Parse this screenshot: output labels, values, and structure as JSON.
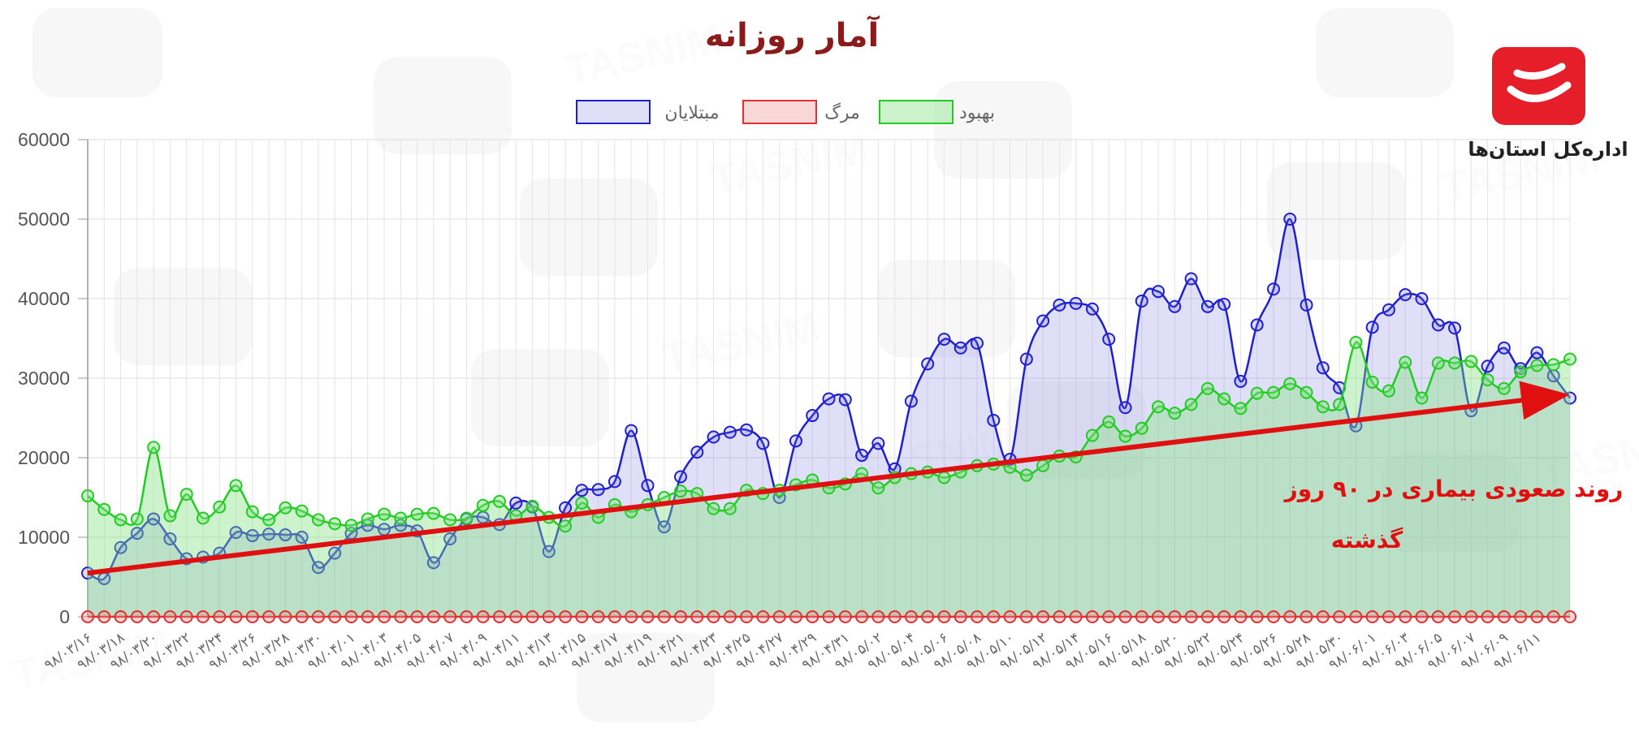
{
  "chart_data": {
    "type": "line",
    "title": "آمار روزانه",
    "ylim": [
      0,
      60000
    ],
    "y_ticks": [
      "0",
      "10000",
      "20000",
      "30000",
      "40000",
      "50000",
      "60000"
    ],
    "grid": true,
    "legend_position": "top-center",
    "x_tick_labels": [
      "۹۸/۰۳/۱۶",
      "۹۸/۰۳/۱۸",
      "۹۸/۰۳/۲۰",
      "۹۸/۰۳/۲۲",
      "۹۸/۰۳/۲۴",
      "۹۸/۰۳/۲۶",
      "۹۸/۰۳/۲۸",
      "۹۸/۰۳/۳۰",
      "۹۸/۰۴/۰۱",
      "۹۸/۰۴/۰۳",
      "۹۸/۰۴/۰۵",
      "۹۸/۰۴/۰۷",
      "۹۸/۰۴/۰۹",
      "۹۸/۰۴/۱۱",
      "۹۸/۰۴/۱۳",
      "۹۸/۰۴/۱۵",
      "۹۸/۰۴/۱۷",
      "۹۸/۰۴/۱۹",
      "۹۸/۰۴/۲۱",
      "۹۸/۰۴/۲۳",
      "۹۸/۰۴/۲۵",
      "۹۸/۰۴/۲۷",
      "۹۸/۰۴/۲۹",
      "۹۸/۰۴/۳۱",
      "۹۸/۰۵/۰۲",
      "۹۸/۰۵/۰۴",
      "۹۸/۰۵/۰۶",
      "۹۸/۰۵/۰۸",
      "۹۸/۰۵/۱۰",
      "۹۸/۰۵/۱۲",
      "۹۸/۰۵/۱۴",
      "۹۸/۰۵/۱۶",
      "۹۸/۰۵/۱۸",
      "۹۸/۰۵/۲۰",
      "۹۸/۰۵/۲۲",
      "۹۸/۰۵/۲۴",
      "۹۸/۰۵/۲۶",
      "۹۸/۰۵/۲۸",
      "۹۸/۰۵/۳۰",
      "۹۸/۰۶/۰۱",
      "۹۸/۰۶/۰۳",
      "۹۸/۰۶/۰۵",
      "۹۸/۰۶/۰۷",
      "۹۸/۰۶/۰۹",
      "۹۸/۰۶/۱۱"
    ],
    "series": [
      {
        "name": "مبتلایان",
        "color": "#1f1fd0",
        "fill": "rgba(110,110,220,0.22)",
        "values": [
          5500,
          4800,
          8700,
          10500,
          12300,
          9800,
          7300,
          7500,
          8000,
          10600,
          10200,
          10400,
          10300,
          10000,
          6200,
          8000,
          10500,
          11500,
          11000,
          11500,
          10800,
          6800,
          9800,
          12300,
          12500,
          11600,
          14300,
          13800,
          8200,
          13700,
          15900,
          16000,
          17000,
          23400,
          16500,
          11300,
          17600,
          20700,
          22600,
          23200,
          23500,
          21800,
          15000,
          22100,
          25300,
          27400,
          27300,
          20300,
          21800,
          18600,
          27100,
          31800,
          34900,
          33800,
          34400,
          24700,
          19800,
          32400,
          37200,
          39200,
          39400,
          38700,
          34900,
          26300,
          39700,
          40900,
          39000,
          42500,
          39000,
          39300,
          29600,
          36700,
          41200,
          50000,
          39200,
          31300,
          28800,
          24000,
          36400,
          38600,
          40500,
          40000,
          36700,
          36300,
          25900,
          31500,
          33800,
          31200,
          33200,
          30300,
          27500
        ]
      },
      {
        "name": "مرگ",
        "color": "#e03030",
        "fill": "rgba(240,140,140,0.35)",
        "values": [
          0,
          0,
          0,
          0,
          0,
          0,
          0,
          0,
          0,
          0,
          0,
          0,
          0,
          0,
          0,
          0,
          0,
          0,
          0,
          0,
          0,
          0,
          0,
          0,
          0,
          0,
          0,
          0,
          0,
          0,
          0,
          0,
          0,
          0,
          0,
          0,
          0,
          0,
          0,
          0,
          0,
          0,
          0,
          0,
          0,
          0,
          0,
          0,
          0,
          0,
          0,
          0,
          0,
          0,
          0,
          0,
          0,
          0,
          0,
          0,
          0,
          0,
          0,
          0,
          0,
          0,
          0,
          0,
          0,
          0,
          0,
          0,
          0,
          0,
          0,
          0,
          0,
          0,
          0,
          0,
          0,
          0,
          0,
          0,
          0,
          0,
          0,
          0,
          0,
          0,
          0
        ]
      },
      {
        "name": "بهبود",
        "color": "#22cc22",
        "fill": "rgba(130,225,130,0.4)",
        "values": [
          15200,
          13500,
          12200,
          12300,
          21300,
          12700,
          15400,
          12400,
          13800,
          16500,
          13200,
          12200,
          13700,
          13300,
          12200,
          11700,
          11500,
          12300,
          12900,
          12400,
          12900,
          13000,
          12200,
          12400,
          14000,
          14500,
          12700,
          13900,
          12500,
          11400,
          14300,
          12500,
          14100,
          13200,
          14100,
          15000,
          15800,
          15500,
          13600,
          13600,
          15900,
          15500,
          15900,
          16600,
          17200,
          16200,
          16700,
          18000,
          16200,
          17500,
          18000,
          18200,
          17500,
          18200,
          19000,
          19200,
          18800,
          17800,
          19000,
          20200,
          20100,
          22800,
          24500,
          22700,
          23700,
          26400,
          25600,
          26700,
          28700,
          27400,
          26200,
          28100,
          28200,
          29300,
          28200,
          26400,
          26700,
          34500,
          29500,
          28400,
          32000,
          27500,
          31900,
          31900,
          32100,
          29800,
          28700,
          30800,
          31600,
          31700,
          32400
        ]
      }
    ],
    "annotation": {
      "line1": "روند صعودی بیماری در ۹۰ روز",
      "line2": "گذشته",
      "arrow_start": 5500,
      "arrow_end": 27800,
      "color": "#e01010"
    }
  },
  "logo": {
    "caption": "اداره‌کل استان‌ها",
    "color": "#e61e2a"
  }
}
